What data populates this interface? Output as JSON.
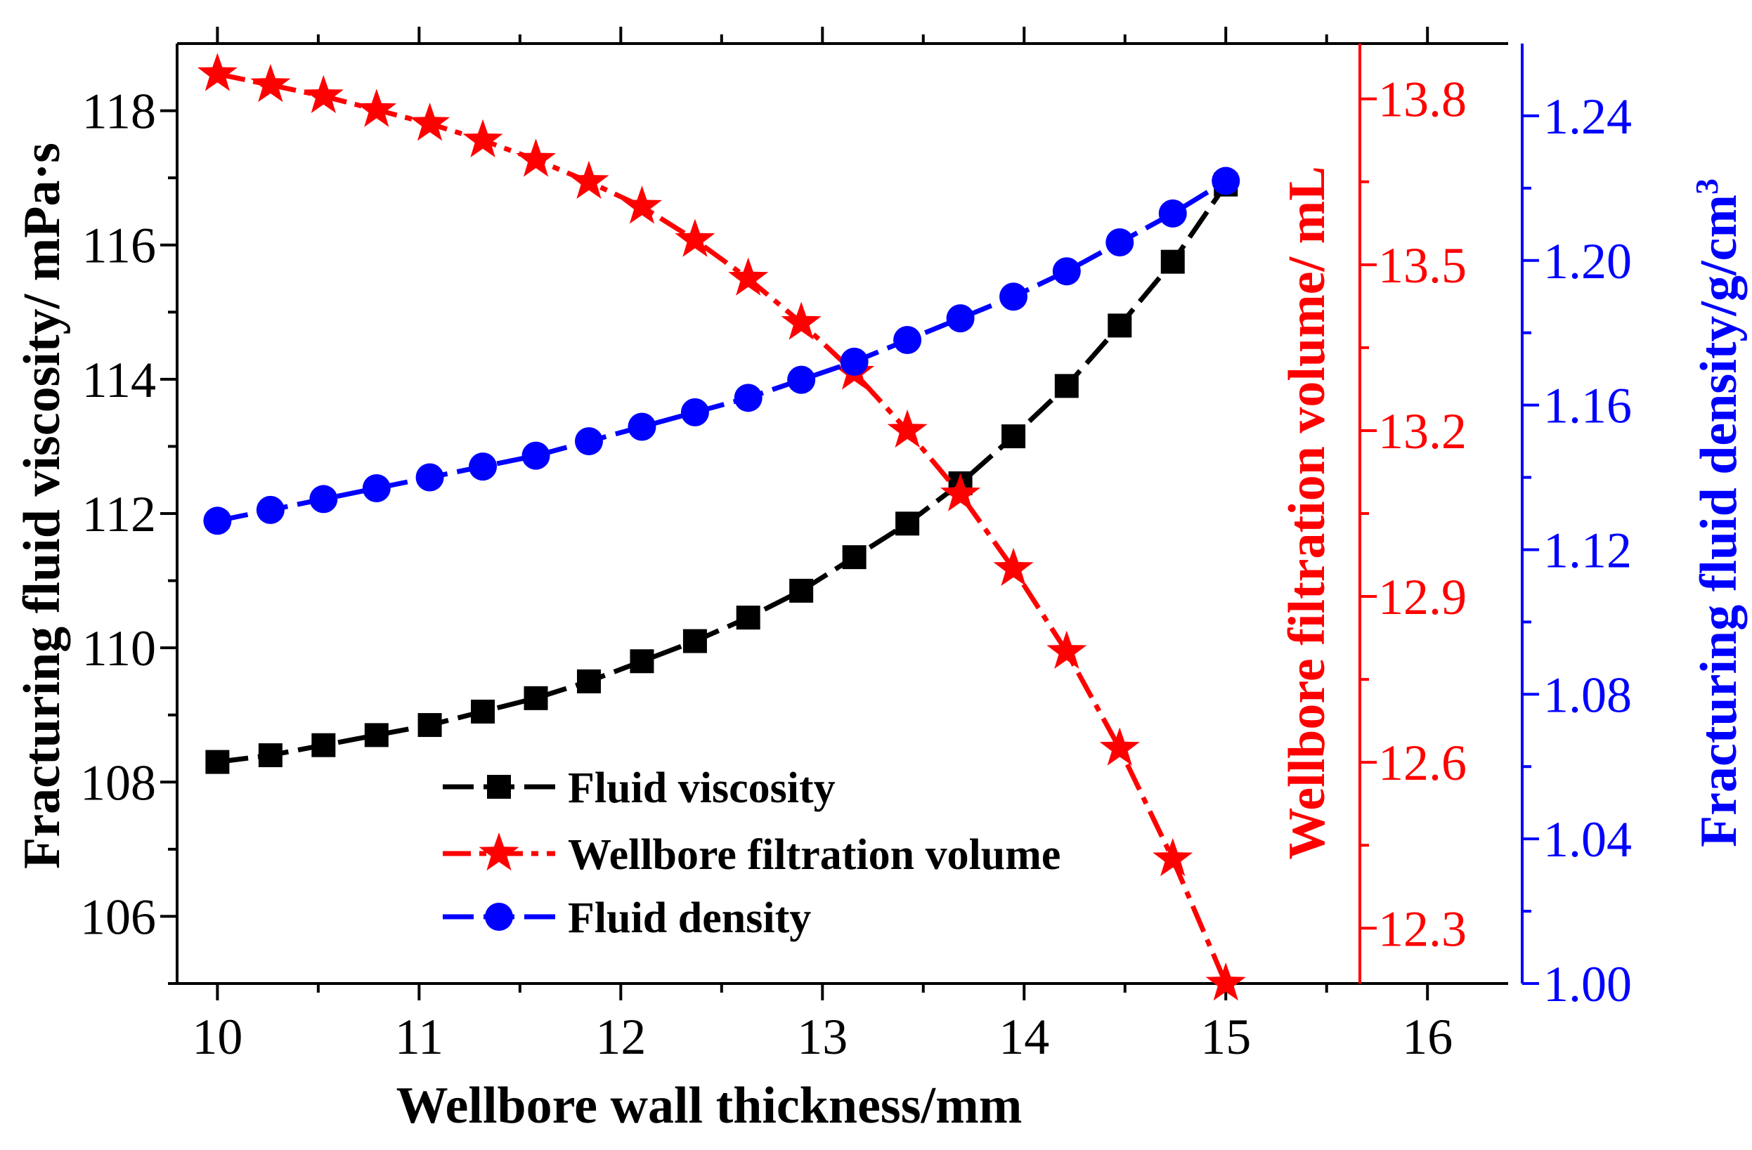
{
  "chart_data": {
    "type": "line",
    "xlabel": "Wellbore wall thickness/mm",
    "ylabel_left": "Fracturing fluid viscosity/ mPa·s",
    "ylabel_right1": "Wellbore filtration volume/ mL",
    "ylabel_right2_prefix": "Fracturing fluid density/g/cm",
    "ylabel_right2_sup": "3",
    "xlim": [
      9.8,
      16.4
    ],
    "x_ticks": [
      "10",
      "11",
      "12",
      "13",
      "14",
      "15",
      "16"
    ],
    "x_tick_values": [
      10,
      11,
      12,
      13,
      14,
      15,
      16
    ],
    "y_left_lim": [
      105,
      119
    ],
    "y_left_ticks": [
      "106",
      "108",
      "110",
      "112",
      "114",
      "116",
      "118"
    ],
    "y_left_tick_values": [
      106,
      108,
      110,
      112,
      114,
      116,
      118
    ],
    "y_right1_lim": [
      12.2,
      13.9
    ],
    "y_right1_ticks": [
      "12.3",
      "12.6",
      "12.9",
      "13.2",
      "13.5",
      "13.8"
    ],
    "y_right1_tick_values": [
      12.3,
      12.6,
      12.9,
      13.2,
      13.5,
      13.8
    ],
    "y_right2_lim": [
      1.0,
      1.26
    ],
    "y_right2_ticks": [
      "1.00",
      "1.04",
      "1.08",
      "1.12",
      "1.16",
      "1.20",
      "1.24"
    ],
    "y_right2_tick_values": [
      1.0,
      1.04,
      1.08,
      1.12,
      1.16,
      1.2,
      1.24
    ],
    "x": [
      10.0,
      10.263,
      10.526,
      10.789,
      11.053,
      11.316,
      11.579,
      11.842,
      12.105,
      12.368,
      12.632,
      12.895,
      13.158,
      13.421,
      13.684,
      13.947,
      14.211,
      14.474,
      14.737,
      15.0
    ],
    "series": [
      {
        "name": "Fluid viscosity",
        "axis": "left",
        "color": "#000000",
        "marker": "square",
        "line": "dash",
        "values": [
          108.3,
          108.4,
          108.55,
          108.7,
          108.85,
          109.05,
          109.25,
          109.5,
          109.8,
          110.1,
          110.45,
          110.85,
          111.35,
          111.85,
          112.45,
          113.15,
          113.9,
          114.8,
          115.75,
          116.9
        ]
      },
      {
        "name": "Wellbore filtration volume",
        "axis": "right1",
        "color": "#ff0000",
        "marker": "star",
        "line": "dashdot",
        "values": [
          13.845,
          13.825,
          13.805,
          13.78,
          13.755,
          13.725,
          13.69,
          13.65,
          13.605,
          13.545,
          13.475,
          13.395,
          13.305,
          13.2,
          13.085,
          12.95,
          12.8,
          12.625,
          12.425,
          12.2
        ]
      },
      {
        "name": "Fluid density",
        "axis": "right2",
        "color": "#0000ff",
        "marker": "circle",
        "line": "dash",
        "values": [
          1.128,
          1.131,
          1.134,
          1.137,
          1.14,
          1.143,
          1.146,
          1.15,
          1.154,
          1.158,
          1.162,
          1.167,
          1.172,
          1.178,
          1.184,
          1.19,
          1.197,
          1.205,
          1.213,
          1.222
        ]
      }
    ]
  }
}
